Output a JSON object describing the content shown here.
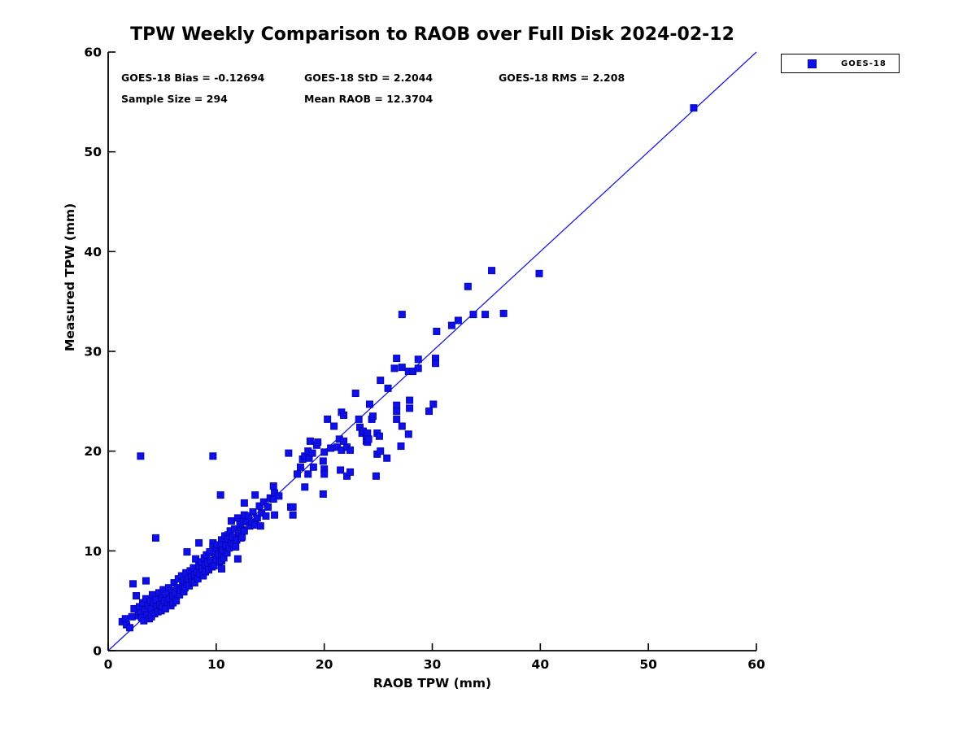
{
  "title": "TPW Weekly Comparison to RAOB over Full Disk 2024-02-12",
  "stats": {
    "bias": "GOES-18 Bias = -0.12694",
    "std": "GOES-18 StD = 2.2044",
    "rms": "GOES-18 RMS = 2.208",
    "sample_size": "Sample Size = 294",
    "mean_raob": "Mean RAOB = 12.3704"
  },
  "legend": {
    "items": [
      {
        "label": "GOES-18",
        "marker": "square"
      }
    ],
    "position": "top-right-outside"
  },
  "axes": {
    "xlabel": "RAOB TPW (mm)",
    "ylabel": "Measured TPW (mm)",
    "x_ticks": [
      0,
      10,
      20,
      30,
      40,
      50,
      60
    ],
    "y_ticks": [
      0,
      10,
      20,
      30,
      40,
      50,
      60
    ],
    "xlim": [
      0,
      60
    ],
    "ylim": [
      0,
      60
    ]
  },
  "colors": {
    "marker_fill": "#0f0fe8",
    "marker_edge": "#0707b8",
    "reference_line": "#1a1add",
    "axis": "#000000",
    "background": "#ffffff"
  },
  "chart_data": {
    "type": "scatter",
    "title": "TPW Weekly Comparison to RAOB over Full Disk 2024-02-12",
    "xlabel": "RAOB TPW (mm)",
    "ylabel": "Measured TPW (mm)",
    "xlim": [
      0,
      60
    ],
    "ylim": [
      0,
      60
    ],
    "grid": false,
    "legend_position": "top-right-outside",
    "annotations": [
      "GOES-18 Bias = -0.12694",
      "GOES-18 StD = 2.2044",
      "GOES-18 RMS = 2.208",
      "Sample Size = 294",
      "Mean RAOB = 12.3704"
    ],
    "reference_line": {
      "type": "identity",
      "from": [
        0,
        0
      ],
      "to": [
        60,
        60
      ]
    },
    "series": [
      {
        "name": "GOES-18",
        "marker": "square",
        "points": [
          [
            1.3,
            2.9
          ],
          [
            1.6,
            3.2
          ],
          [
            1.7,
            2.6
          ],
          [
            2.0,
            2.3
          ],
          [
            2.2,
            3.4
          ],
          [
            2.3,
            6.7
          ],
          [
            2.4,
            4.2
          ],
          [
            2.6,
            5.5
          ],
          [
            2.8,
            3.5
          ],
          [
            2.9,
            4.4
          ],
          [
            3.0,
            19.5
          ],
          [
            3.0,
            3.8
          ],
          [
            3.1,
            3.3
          ],
          [
            3.2,
            4.8
          ],
          [
            3.3,
            3.0
          ],
          [
            3.4,
            4.1
          ],
          [
            3.5,
            7.0
          ],
          [
            3.5,
            5.2
          ],
          [
            3.6,
            3.6
          ],
          [
            3.7,
            4.5
          ],
          [
            3.8,
            3.2
          ],
          [
            3.9,
            5.0
          ],
          [
            4.0,
            4.2
          ],
          [
            4.0,
            3.4
          ],
          [
            4.1,
            5.6
          ],
          [
            4.2,
            4.8
          ],
          [
            4.3,
            3.7
          ],
          [
            4.4,
            11.3
          ],
          [
            4.4,
            5.1
          ],
          [
            4.5,
            4.4
          ],
          [
            4.6,
            3.9
          ],
          [
            4.7,
            5.8
          ],
          [
            4.8,
            4.6
          ],
          [
            4.9,
            4.0
          ],
          [
            5.0,
            5.3
          ],
          [
            5.0,
            4.4
          ],
          [
            5.1,
            6.1
          ],
          [
            5.2,
            5.0
          ],
          [
            5.3,
            4.2
          ],
          [
            5.4,
            5.7
          ],
          [
            5.5,
            4.8
          ],
          [
            5.6,
            6.3
          ],
          [
            5.7,
            5.2
          ],
          [
            5.8,
            4.5
          ],
          [
            5.9,
            6.0
          ],
          [
            6.0,
            5.5
          ],
          [
            6.0,
            4.8
          ],
          [
            6.1,
            6.8
          ],
          [
            6.2,
            5.8
          ],
          [
            6.3,
            5.0
          ],
          [
            6.4,
            6.3
          ],
          [
            6.5,
            7.2
          ],
          [
            6.6,
            5.6
          ],
          [
            6.7,
            6.1
          ],
          [
            6.8,
            7.5
          ],
          [
            6.9,
            6.5
          ],
          [
            7.0,
            5.9
          ],
          [
            7.0,
            7.0
          ],
          [
            7.1,
            6.3
          ],
          [
            7.2,
            7.8
          ],
          [
            7.3,
            9.9
          ],
          [
            7.3,
            6.8
          ],
          [
            7.4,
            7.2
          ],
          [
            7.5,
            6.5
          ],
          [
            7.6,
            8.0
          ],
          [
            7.7,
            7.4
          ],
          [
            7.8,
            6.9
          ],
          [
            7.9,
            8.3
          ],
          [
            8.0,
            7.6
          ],
          [
            8.0,
            6.8
          ],
          [
            8.1,
            9.2
          ],
          [
            8.2,
            7.9
          ],
          [
            8.3,
            7.2
          ],
          [
            8.4,
            10.8
          ],
          [
            8.4,
            8.5
          ],
          [
            8.5,
            7.7
          ],
          [
            8.6,
            8.9
          ],
          [
            8.7,
            8.2
          ],
          [
            8.8,
            7.5
          ],
          [
            8.9,
            9.3
          ],
          [
            9.0,
            8.6
          ],
          [
            9.0,
            7.9
          ],
          [
            9.1,
            9.6
          ],
          [
            9.2,
            8.8
          ],
          [
            9.3,
            8.1
          ],
          [
            9.4,
            9.9
          ],
          [
            9.5,
            9.0
          ],
          [
            9.6,
            8.4
          ],
          [
            9.7,
            19.5
          ],
          [
            9.7,
            10.8
          ],
          [
            9.7,
            10.4
          ],
          [
            9.8,
            8.5
          ],
          [
            9.9,
            9.4
          ],
          [
            10.0,
            10.2
          ],
          [
            10.0,
            9.1
          ],
          [
            10.1,
            10.6
          ],
          [
            10.2,
            9.7
          ],
          [
            10.3,
            8.9
          ],
          [
            10.4,
            15.6
          ],
          [
            10.5,
            11.1
          ],
          [
            10.5,
            10.6
          ],
          [
            10.5,
            10.0
          ],
          [
            10.5,
            9.5
          ],
          [
            10.5,
            9.0
          ],
          [
            10.5,
            8.2
          ],
          [
            10.6,
            10.1
          ],
          [
            10.7,
            9.3
          ],
          [
            10.8,
            11.5
          ],
          [
            10.9,
            10.5
          ],
          [
            11.0,
            9.8
          ],
          [
            11.1,
            11.6
          ],
          [
            11.1,
            11.2
          ],
          [
            11.2,
            10.3
          ],
          [
            11.3,
            12.0
          ],
          [
            11.4,
            13.0
          ],
          [
            11.4,
            10.8
          ],
          [
            11.5,
            11.4
          ],
          [
            11.6,
            10.6
          ],
          [
            11.7,
            12.2
          ],
          [
            11.8,
            10.4
          ],
          [
            11.9,
            11.1
          ],
          [
            12.0,
            13.3
          ],
          [
            12.0,
            9.2
          ],
          [
            12.1,
            11.8
          ],
          [
            12.2,
            12.6
          ],
          [
            12.3,
            11.3
          ],
          [
            12.4,
            12.1
          ],
          [
            12.4,
            11.4
          ],
          [
            12.5,
            13.0
          ],
          [
            12.6,
            14.8
          ],
          [
            12.6,
            13.6
          ],
          [
            12.6,
            12.0
          ],
          [
            12.8,
            12.9
          ],
          [
            13.0,
            13.5
          ],
          [
            13.1,
            12.5
          ],
          [
            13.3,
            12.9
          ],
          [
            13.4,
            13.9
          ],
          [
            13.6,
            15.6
          ],
          [
            13.6,
            12.6
          ],
          [
            13.8,
            13.3
          ],
          [
            14.0,
            14.5
          ],
          [
            14.1,
            12.5
          ],
          [
            14.2,
            13.8
          ],
          [
            14.4,
            14.9
          ],
          [
            14.6,
            13.5
          ],
          [
            14.8,
            14.4
          ],
          [
            15.0,
            15.3
          ],
          [
            15.3,
            16.5
          ],
          [
            15.3,
            15.2
          ],
          [
            15.4,
            15.8
          ],
          [
            15.4,
            13.6
          ],
          [
            15.8,
            15.5
          ],
          [
            16.7,
            19.8
          ],
          [
            16.9,
            14.4
          ],
          [
            17.1,
            14.4
          ],
          [
            17.1,
            13.6
          ],
          [
            17.5,
            17.7
          ],
          [
            17.8,
            18.4
          ],
          [
            18.0,
            19.2
          ],
          [
            18.2,
            19.5
          ],
          [
            18.2,
            16.4
          ],
          [
            18.5,
            20.0
          ],
          [
            18.5,
            17.7
          ],
          [
            18.6,
            19.3
          ],
          [
            18.7,
            21.0
          ],
          [
            18.9,
            19.8
          ],
          [
            19.0,
            18.4
          ],
          [
            19.3,
            20.6
          ],
          [
            19.4,
            20.9
          ],
          [
            19.9,
            19.0
          ],
          [
            19.9,
            15.7
          ],
          [
            20.0,
            19.9
          ],
          [
            20.0,
            18.2
          ],
          [
            20.0,
            17.7
          ],
          [
            20.3,
            23.2
          ],
          [
            20.6,
            20.3
          ],
          [
            20.9,
            22.5
          ],
          [
            21.2,
            20.4
          ],
          [
            21.4,
            21.2
          ],
          [
            21.5,
            18.1
          ],
          [
            21.6,
            23.9
          ],
          [
            21.6,
            20.1
          ],
          [
            21.8,
            23.6
          ],
          [
            21.8,
            21.0
          ],
          [
            22.1,
            20.4
          ],
          [
            22.1,
            17.5
          ],
          [
            22.4,
            20.1
          ],
          [
            22.4,
            17.9
          ],
          [
            22.9,
            25.8
          ],
          [
            23.2,
            23.2
          ],
          [
            23.3,
            22.4
          ],
          [
            23.5,
            21.8
          ],
          [
            23.6,
            22.0
          ],
          [
            23.9,
            21.5
          ],
          [
            23.9,
            21.0
          ],
          [
            24.0,
            21.8
          ],
          [
            24.0,
            20.9
          ],
          [
            24.1,
            21.2
          ],
          [
            24.2,
            24.7
          ],
          [
            24.4,
            23.2
          ],
          [
            24.5,
            23.5
          ],
          [
            24.8,
            17.5
          ],
          [
            24.9,
            21.8
          ],
          [
            24.9,
            19.7
          ],
          [
            25.1,
            21.5
          ],
          [
            25.2,
            27.1
          ],
          [
            25.2,
            20.0
          ],
          [
            25.8,
            19.3
          ],
          [
            25.9,
            26.3
          ],
          [
            26.5,
            28.3
          ],
          [
            26.7,
            29.3
          ],
          [
            26.7,
            24.6
          ],
          [
            26.7,
            24.0
          ],
          [
            26.7,
            23.2
          ],
          [
            27.1,
            20.5
          ],
          [
            27.2,
            33.7
          ],
          [
            27.2,
            28.4
          ],
          [
            27.2,
            22.5
          ],
          [
            27.8,
            28.0
          ],
          [
            27.8,
            21.7
          ],
          [
            27.9,
            25.1
          ],
          [
            27.9,
            24.3
          ],
          [
            28.2,
            28.0
          ],
          [
            28.7,
            29.2
          ],
          [
            28.7,
            28.3
          ],
          [
            29.7,
            24.0
          ],
          [
            30.1,
            24.7
          ],
          [
            30.3,
            29.3
          ],
          [
            30.3,
            28.8
          ],
          [
            30.4,
            32.0
          ],
          [
            31.8,
            32.6
          ],
          [
            32.4,
            33.1
          ],
          [
            33.3,
            36.5
          ],
          [
            33.8,
            33.7
          ],
          [
            34.9,
            33.7
          ],
          [
            35.5,
            38.1
          ],
          [
            36.6,
            33.8
          ],
          [
            39.9,
            37.8
          ],
          [
            54.2,
            54.4
          ]
        ]
      }
    ]
  }
}
